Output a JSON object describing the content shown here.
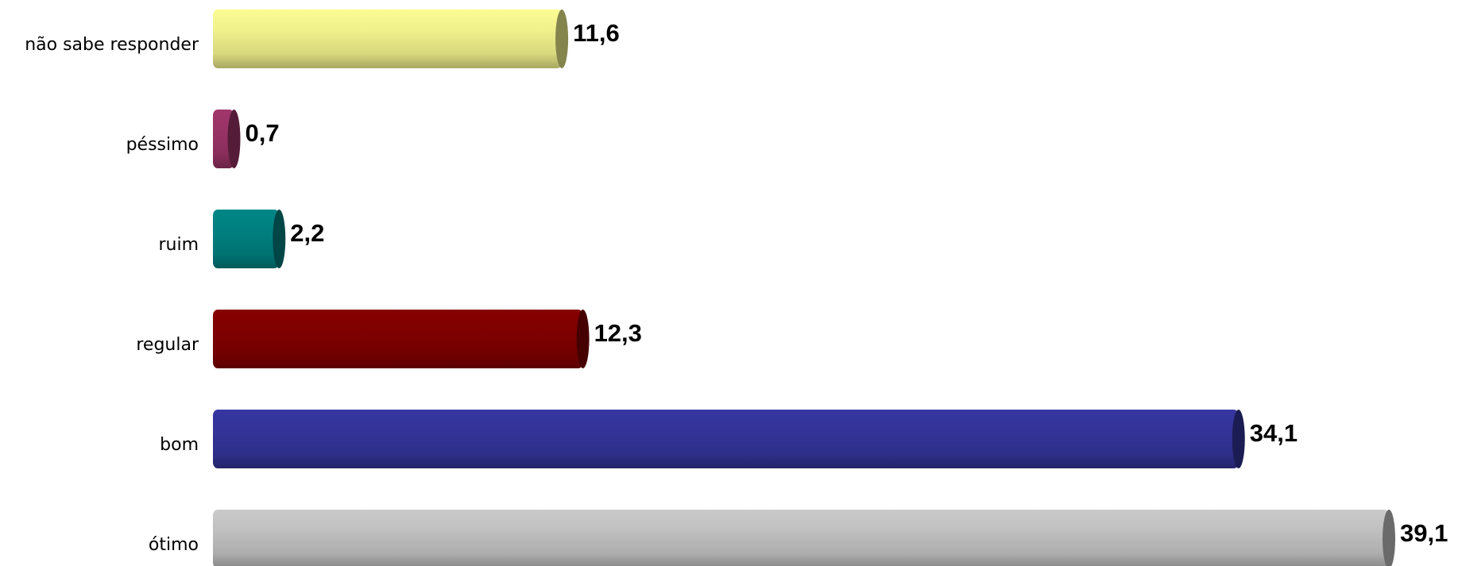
{
  "chart_data": {
    "type": "bar",
    "orientation": "horizontal",
    "categories": [
      "não sabe responder",
      "péssimo",
      "ruim",
      "regular",
      "bom",
      "ótimo"
    ],
    "values": [
      11.6,
      0.7,
      2.2,
      12.3,
      34.1,
      39.1
    ],
    "value_labels": [
      "11,6",
      "0,7",
      "2,2",
      "12,3",
      "34,1",
      "39,1"
    ],
    "colors": [
      "#f0f08c",
      "#993366",
      "#008080",
      "#800000",
      "#333399",
      "#c0c0c0"
    ]
  }
}
